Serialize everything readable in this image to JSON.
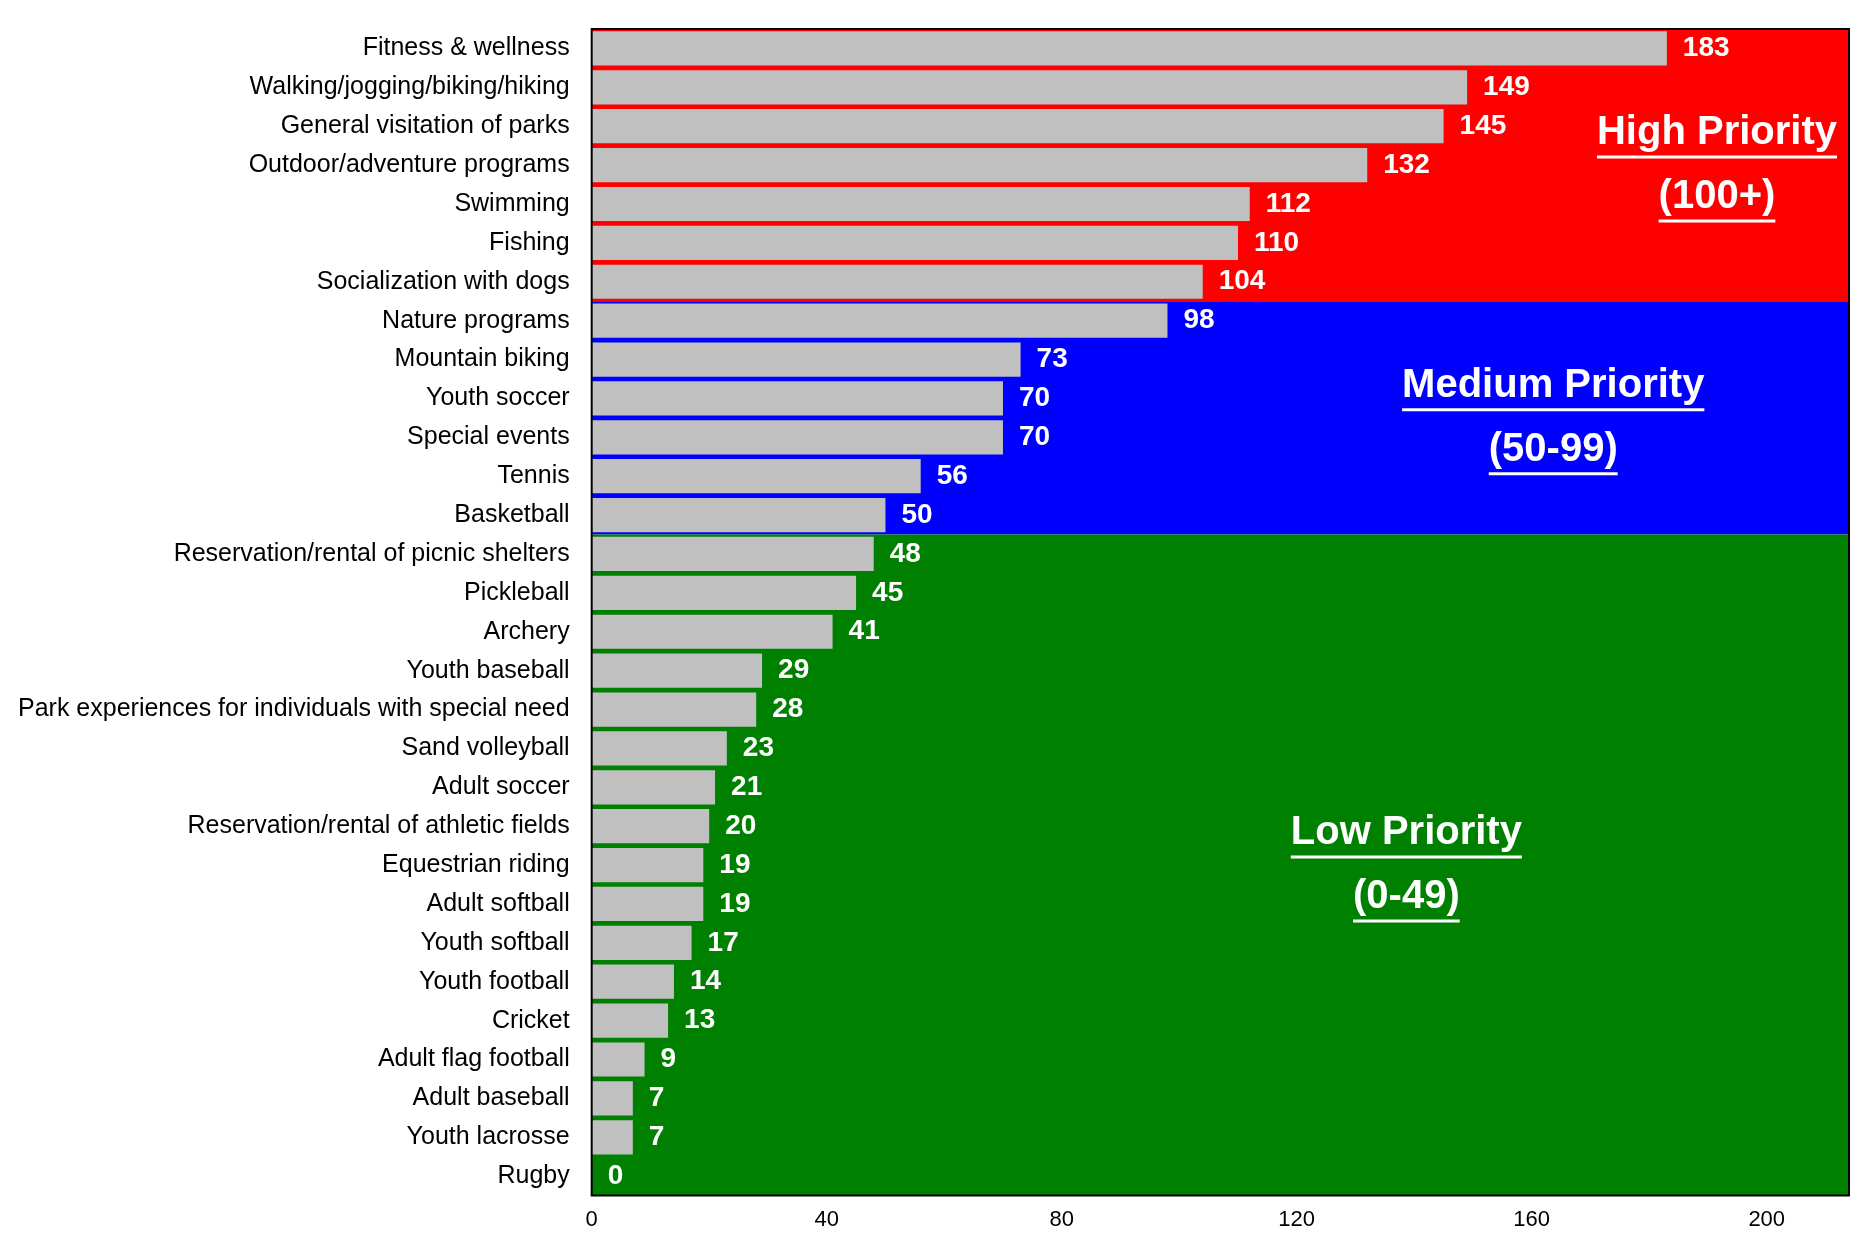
{
  "chart_data": {
    "type": "bar",
    "orientation": "horizontal",
    "categories": [
      "Fitness & wellness",
      "Walking/jogging/biking/hiking",
      "General visitation of parks",
      "Outdoor/adventure programs",
      "Swimming",
      "Fishing",
      "Socialization with dogs",
      "Nature programs",
      "Mountain biking",
      "Youth soccer",
      "Special events",
      "Tennis",
      "Basketball",
      "Reservation/rental of picnic shelters",
      "Pickleball",
      "Archery",
      "Youth baseball",
      "Park experiences for individuals with special need",
      "Sand volleyball",
      "Adult soccer",
      "Reservation/rental of athletic fields",
      "Equestrian riding",
      "Adult softball",
      "Youth softball",
      "Youth football",
      "Cricket",
      "Adult flag football",
      "Adult baseball",
      "Youth lacrosse",
      "Rugby"
    ],
    "values": [
      183,
      149,
      145,
      132,
      112,
      110,
      104,
      98,
      73,
      70,
      70,
      56,
      50,
      48,
      45,
      41,
      29,
      28,
      23,
      21,
      20,
      19,
      19,
      17,
      14,
      13,
      9,
      7,
      7,
      0
    ],
    "color": "#c0c0c0",
    "xlim": [
      0,
      214
    ],
    "xticks": [
      0,
      40,
      80,
      120,
      160,
      200
    ],
    "grid": false,
    "legend": false,
    "data_labels": true,
    "bands": [
      {
        "axis": "y",
        "from": "Fitness & wellness",
        "to": "Socialization with dogs",
        "label": "High Priority\n(100+)",
        "color": "#ff0000"
      },
      {
        "axis": "y",
        "from": "Nature programs",
        "to": "Basketball",
        "label": "Medium Priority\n(50-99)",
        "color": "#0000ff"
      },
      {
        "axis": "y",
        "from": "Reservation/rental of picnic shelters",
        "to": "Rugby",
        "label": "Low Priority\n(0-49)",
        "color": "#008000"
      }
    ]
  }
}
